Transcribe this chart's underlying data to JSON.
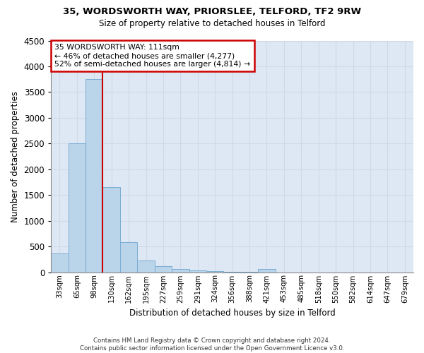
{
  "title": "35, WORDSWORTH WAY, PRIORSLEE, TELFORD, TF2 9RW",
  "subtitle": "Size of property relative to detached houses in Telford",
  "xlabel": "Distribution of detached houses by size in Telford",
  "ylabel": "Number of detached properties",
  "footer_line1": "Contains HM Land Registry data © Crown copyright and database right 2024.",
  "footer_line2": "Contains public sector information licensed under the Open Government Licence v3.0.",
  "categories": [
    "33sqm",
    "65sqm",
    "98sqm",
    "130sqm",
    "162sqm",
    "195sqm",
    "227sqm",
    "259sqm",
    "291sqm",
    "324sqm",
    "356sqm",
    "388sqm",
    "421sqm",
    "453sqm",
    "485sqm",
    "518sqm",
    "550sqm",
    "582sqm",
    "614sqm",
    "647sqm",
    "679sqm"
  ],
  "values": [
    370,
    2500,
    3750,
    1650,
    590,
    230,
    110,
    65,
    35,
    20,
    10,
    5,
    60,
    0,
    0,
    0,
    0,
    0,
    0,
    0,
    0
  ],
  "bar_color": "#bad4ea",
  "bar_edge_color": "#7aadd4",
  "grid_color": "#d0d8e8",
  "bg_color": "#dde8f4",
  "property_line_color": "#cc0000",
  "annotation_text_line1": "35 WORDSWORTH WAY: 111sqm",
  "annotation_text_line2": "← 46% of detached houses are smaller (4,277)",
  "annotation_text_line3": "52% of semi-detached houses are larger (4,814) →",
  "annotation_box_facecolor": "white",
  "annotation_box_edgecolor": "#cc0000",
  "ylim": [
    0,
    4500
  ],
  "yticks": [
    0,
    500,
    1000,
    1500,
    2000,
    2500,
    3000,
    3500,
    4000,
    4500
  ],
  "property_line_xindex": 2.5
}
